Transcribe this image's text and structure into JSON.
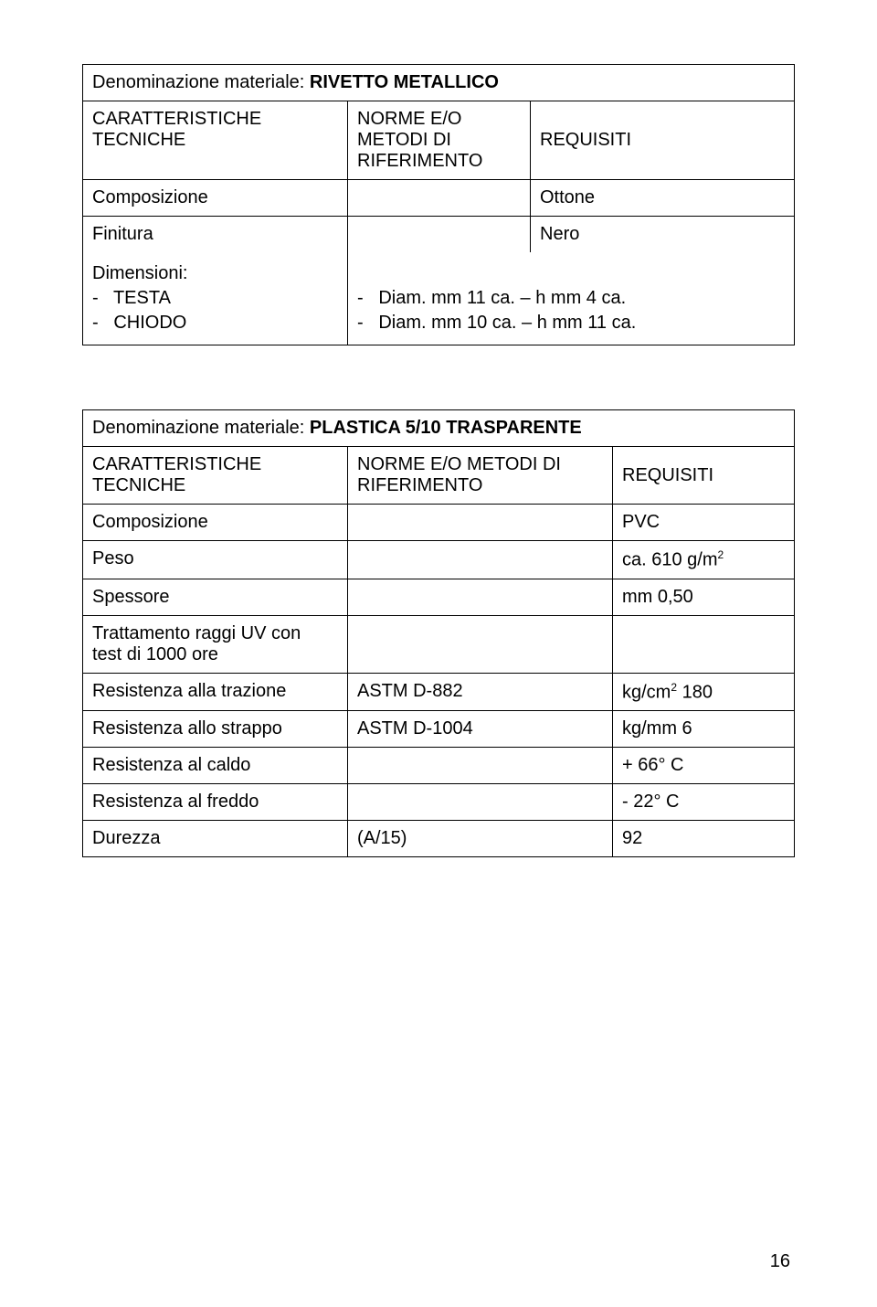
{
  "table1": {
    "title_prefix": "Denominazione materiale: ",
    "title_name": "RIVETTO METALLICO",
    "header": {
      "col1_l1": "CARATTERISTICHE",
      "col1_l2": "TECNICHE",
      "col2_l1": "NORME E/O",
      "col2_l2": "METODI DI",
      "col2_l3": "RIFERIMENTO",
      "col3": "REQUISITI"
    },
    "rows": [
      {
        "c1": "Composizione",
        "c3": "Ottone"
      },
      {
        "c1": "Finitura",
        "c3": "Nero"
      }
    ],
    "dimensioni_label": "Dimensioni:",
    "dim_items": [
      "-   TESTA",
      "-   CHIODO"
    ],
    "dim_values": [
      "-   Diam. mm 11 ca. – h mm 4 ca.",
      "-   Diam. mm 10 ca. – h mm 11 ca."
    ]
  },
  "table2": {
    "title_prefix": "Denominazione materiale: ",
    "title_name": "PLASTICA 5/10 TRASPARENTE",
    "header": {
      "col1_l1": "CARATTERISTICHE",
      "col1_l2": "TECNICHE",
      "col2_l1": "NORME E/O METODI DI",
      "col2_l2": "RIFERIMENTO",
      "col3": "REQUISITI"
    },
    "rows": [
      {
        "c1": "Composizione",
        "c2": "",
        "c3": "PVC",
        "sup": ""
      },
      {
        "c1": "Peso",
        "c2": "",
        "c3": "ca. 610 g/m",
        "sup": "2"
      },
      {
        "c1": "Spessore",
        "c2": "",
        "c3": "mm 0,50",
        "sup": ""
      },
      {
        "c1": "Trattamento raggi UV con\n test di 1000 ore",
        "c2": "",
        "c3": "",
        "sup": ""
      },
      {
        "c1": "Resistenza alla trazione",
        "c2": "ASTM D-882",
        "c3": "kg/cm",
        "sup": "2",
        "suffix": " 180"
      },
      {
        "c1": "Resistenza allo strappo",
        "c2": "ASTM D-1004",
        "c3": "kg/mm 6",
        "sup": ""
      },
      {
        "c1": "Resistenza al caldo",
        "c2": "",
        "c3": "+ 66° C",
        "sup": ""
      },
      {
        "c1": "Resistenza al freddo",
        "c2": "",
        "c3": "- 22° C",
        "sup": ""
      },
      {
        "c1": "Durezza",
        "c2": " (A/15)",
        "c3": "92",
        "sup": ""
      }
    ]
  },
  "page_number": "16"
}
